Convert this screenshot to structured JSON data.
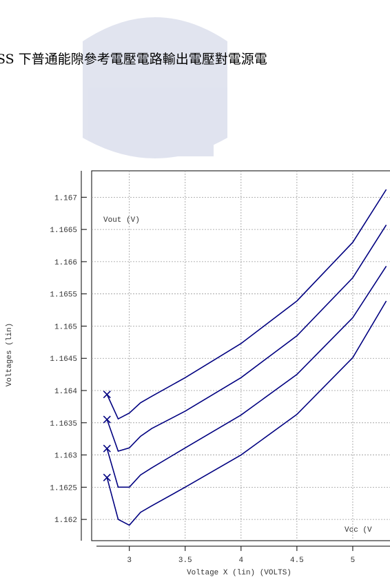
{
  "chart_data": {
    "type": "line",
    "title": "SS 下普通能隙參考電壓電路輸出電壓對電源電",
    "y_series_label": "Vout (V)",
    "x_series_label": "Vcc (V",
    "ylabel": "Voltages (lin)",
    "xlabel": "Voltage X (lin) (VOLTS)",
    "x": [
      2.8,
      2.9,
      3.0,
      3.1,
      3.2,
      3.5,
      4.0,
      4.5,
      5.0,
      5.3
    ],
    "series": [
      {
        "color": "#000080",
        "values": [
          1.16394,
          1.16356,
          1.16365,
          1.16381,
          1.16391,
          1.1642,
          1.16473,
          1.16539,
          1.1663,
          1.16712
        ]
      },
      {
        "color": "#000080",
        "values": [
          1.16355,
          1.16306,
          1.16311,
          1.16329,
          1.16341,
          1.16368,
          1.1642,
          1.16485,
          1.16575,
          1.16657
        ]
      },
      {
        "color": "#000080",
        "values": [
          1.1631,
          1.1625,
          1.1625,
          1.16269,
          1.1628,
          1.16311,
          1.16362,
          1.16425,
          1.16513,
          1.16593
        ]
      },
      {
        "color": "#000080",
        "values": [
          1.16265,
          1.162,
          1.16191,
          1.16211,
          1.16221,
          1.1625,
          1.163,
          1.16363,
          1.16451,
          1.16539
        ]
      }
    ],
    "xlim": [
      2.6625,
      5.5
    ],
    "ylim": [
      1.16167,
      1.16741
    ],
    "xticks": [
      3,
      3.5,
      4,
      4.5,
      5
    ],
    "yticks": [
      1.162,
      1.1625,
      1.163,
      1.1635,
      1.164,
      1.1645,
      1.165,
      1.1655,
      1.166,
      1.1665,
      1.167
    ],
    "grid": true
  }
}
